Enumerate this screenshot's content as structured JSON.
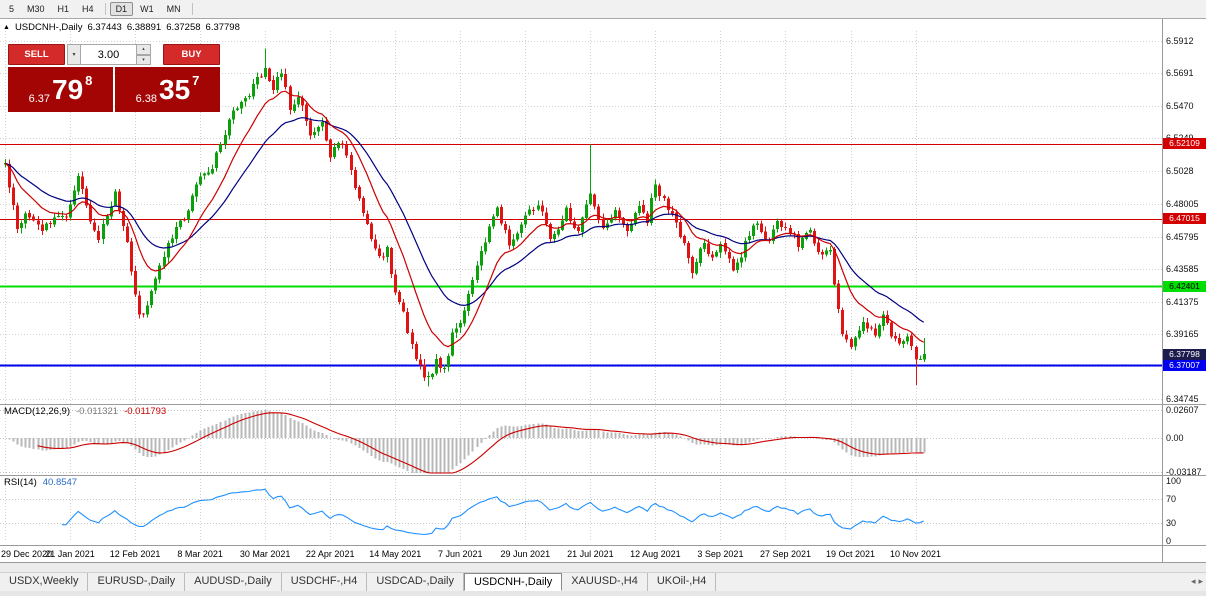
{
  "toolbar": {
    "periods": [
      {
        "label": "5",
        "active": false
      },
      {
        "label": "M30",
        "active": false
      },
      {
        "label": "H1",
        "active": false
      },
      {
        "label": "H4",
        "active": false
      },
      {
        "label": "D1",
        "active": true
      },
      {
        "label": "W1",
        "active": false
      },
      {
        "label": "MN",
        "active": false
      }
    ]
  },
  "icons": {
    "collapse": "▲",
    "dropdown": "▾",
    "spin_up": "▴",
    "spin_down": "▾",
    "tab_scroll_left": "◂",
    "tab_scroll_right": "▸"
  },
  "chart_header": {
    "symbol": "USDCNH-,Daily",
    "open": "6.37443",
    "high": "6.38891",
    "low": "6.37258",
    "close": "6.37798"
  },
  "trade_panel": {
    "sell_label": "SELL",
    "buy_label": "BUY",
    "volume": "3.00",
    "sell_small": "6.37",
    "sell_big": "79",
    "sell_sup": "8",
    "buy_small": "6.38",
    "buy_big": "35",
    "buy_sup": "7"
  },
  "price_scale": [
    {
      "text": "6.5912",
      "price": 6.5912
    },
    {
      "text": "6.5691",
      "price": 6.5691
    },
    {
      "text": "6.5470",
      "price": 6.547
    },
    {
      "text": "6.5249",
      "price": 6.5249
    },
    {
      "text": "6.5028",
      "price": 6.5028
    },
    {
      "text": "6.48005",
      "price": 6.48005
    },
    {
      "text": "6.45795",
      "price": 6.45795
    },
    {
      "text": "6.43585",
      "price": 6.43585
    },
    {
      "text": "6.41375",
      "price": 6.41375
    },
    {
      "text": "6.39165",
      "price": 6.39165
    },
    {
      "text": "",
      "price": 6.36955
    },
    {
      "text": "6.34745",
      "price": 6.34745
    }
  ],
  "levels": [
    {
      "text": "6.52109",
      "price": 6.52109,
      "color": "#d40000",
      "tag_bg": "#d40000",
      "tag_fg": "#ffffff",
      "width": 1,
      "name": "resistance-line-tag-6-52109"
    },
    {
      "text": "6.47015",
      "price": 6.47015,
      "color": "#d40000",
      "tag_bg": "#d40000",
      "tag_fg": "#ffffff",
      "width": 1,
      "name": "resistance-line-tag-6-47015"
    },
    {
      "text": "6.42401",
      "price": 6.42401,
      "color": "#00dd00",
      "tag_bg": "#00dd00",
      "tag_fg": "#000000",
      "width": 2,
      "name": "support-line-tag-6-42401"
    },
    {
      "text": "6.37007",
      "price": 6.37007,
      "color": "#0000ee",
      "tag_bg": "#0000ee",
      "tag_fg": "#ffffff",
      "width": 2,
      "name": "support-line-tag-6-37007"
    }
  ],
  "current_price_tag": {
    "text": "6.37798",
    "price": 6.37798,
    "tag_bg": "#1b1b4e",
    "tag_fg": "#ffffff",
    "name": "current-price-tag"
  },
  "macd_panel": {
    "name": "MACD(12,26,9)",
    "value_main": "-0.011321",
    "value_signal": "-0.011793",
    "scale": [
      {
        "text": "0.02607",
        "value": 0.02607
      },
      {
        "text": "0.00",
        "value": 0
      },
      {
        "text": "-0.03187",
        "value": -0.03187
      }
    ]
  },
  "rsi_panel": {
    "name": "RSI(14)",
    "value": "40.8547",
    "scale": [
      {
        "text": "100",
        "value": 100
      },
      {
        "text": "70",
        "value": 70
      },
      {
        "text": "30",
        "value": 30
      },
      {
        "text": "0",
        "value": 0
      }
    ],
    "level_lines": [
      70,
      30
    ]
  },
  "x_axis": [
    "29 Dec 2020",
    "21 Jan 2021",
    "12 Feb 2021",
    "8 Mar 2021",
    "30 Mar 2021",
    "22 Apr 2021",
    "14 May 2021",
    "7 Jun 2021",
    "29 Jun 2021",
    "21 Jul 2021",
    "12 Aug 2021",
    "3 Sep 2021",
    "27 Sep 2021",
    "19 Oct 2021",
    "10 Nov 2021"
  ],
  "tabs": {
    "items": [
      {
        "label": "USDX,Weekly",
        "active": false
      },
      {
        "label": "EURUSD-,Daily",
        "active": false
      },
      {
        "label": "AUDUSD-,Daily",
        "active": false
      },
      {
        "label": "USDCHF-,H4",
        "active": false
      },
      {
        "label": "USDCAD-,Daily",
        "active": false
      },
      {
        "label": "USDCNH-,Daily",
        "active": true
      },
      {
        "label": "XAUUSD-,H4",
        "active": false
      },
      {
        "label": "UKOil-,H4",
        "active": false
      }
    ]
  },
  "colors": {
    "up": "#0aa10a",
    "down": "#e01414",
    "grid": "#d2d2d2",
    "ma_fast": "#cc0000",
    "ma_slow": "#000080",
    "macd_hist": "#b8b8b8",
    "macd_signal": "#cc0000",
    "rsi_line": "#1e90ff",
    "panel_red": "#a30505",
    "button_red": "#d42a2a"
  },
  "chart_data": {
    "type": "candlestick",
    "symbol": "USDCNH",
    "timeframe": "Daily",
    "ylim": [
      6.344,
      6.598
    ],
    "bars": 227,
    "x_tick_every_bars": 16,
    "levels": [
      6.52109,
      6.47015,
      6.42401,
      6.37007
    ],
    "current_price": 6.37798,
    "last_ohlc": [
      6.37443,
      6.38891,
      6.37258,
      6.37798
    ],
    "macd_current": [
      -0.011321,
      -0.011793
    ],
    "rsi_current": 40.8547,
    "indicators": {
      "ma_fast": {
        "type": "EMA",
        "period": 12
      },
      "ma_slow": {
        "type": "EMA",
        "period": 26
      },
      "macd": [
        12,
        26,
        9
      ],
      "rsi": 14
    },
    "spikes": {
      "64": {
        "high": 6.586
      },
      "104": {
        "low": 6.356
      },
      "144": {
        "high": 6.5208
      },
      "224": {
        "low": 6.357
      }
    },
    "price_anchors": [
      [
        0,
        6.506
      ],
      [
        3,
        6.465
      ],
      [
        6,
        6.474
      ],
      [
        9,
        6.46
      ],
      [
        12,
        6.472
      ],
      [
        15,
        6.469
      ],
      [
        18,
        6.497
      ],
      [
        21,
        6.47
      ],
      [
        23,
        6.456
      ],
      [
        27,
        6.488
      ],
      [
        30,
        6.452
      ],
      [
        33,
        6.403
      ],
      [
        35,
        6.41
      ],
      [
        37,
        6.432
      ],
      [
        41,
        6.458
      ],
      [
        44,
        6.47
      ],
      [
        48,
        6.498
      ],
      [
        51,
        6.506
      ],
      [
        53,
        6.52
      ],
      [
        55,
        6.536
      ],
      [
        57,
        6.548
      ],
      [
        60,
        6.556
      ],
      [
        62,
        6.565
      ],
      [
        64,
        6.574
      ],
      [
        66,
        6.558
      ],
      [
        68,
        6.57
      ],
      [
        70,
        6.545
      ],
      [
        72,
        6.553
      ],
      [
        75,
        6.528
      ],
      [
        78,
        6.537
      ],
      [
        80,
        6.514
      ],
      [
        83,
        6.521
      ],
      [
        86,
        6.492
      ],
      [
        88,
        6.474
      ],
      [
        90,
        6.458
      ],
      [
        92,
        6.442
      ],
      [
        94,
        6.448
      ],
      [
        96,
        6.418
      ],
      [
        98,
        6.404
      ],
      [
        100,
        6.382
      ],
      [
        102,
        6.37
      ],
      [
        104,
        6.36
      ],
      [
        106,
        6.374
      ],
      [
        108,
        6.366
      ],
      [
        110,
        6.392
      ],
      [
        113,
        6.406
      ],
      [
        116,
        6.438
      ],
      [
        119,
        6.466
      ],
      [
        121,
        6.478
      ],
      [
        124,
        6.452
      ],
      [
        126,
        6.46
      ],
      [
        128,
        6.472
      ],
      [
        131,
        6.481
      ],
      [
        134,
        6.456
      ],
      [
        136,
        6.464
      ],
      [
        138,
        6.476
      ],
      [
        141,
        6.462
      ],
      [
        144,
        6.488
      ],
      [
        147,
        6.461
      ],
      [
        150,
        6.478
      ],
      [
        153,
        6.461
      ],
      [
        156,
        6.479
      ],
      [
        158,
        6.47
      ],
      [
        160,
        6.493
      ],
      [
        163,
        6.477
      ],
      [
        166,
        6.46
      ],
      [
        169,
        6.432
      ],
      [
        172,
        6.455
      ],
      [
        174,
        6.442
      ],
      [
        176,
        6.456
      ],
      [
        179,
        6.434
      ],
      [
        182,
        6.452
      ],
      [
        185,
        6.468
      ],
      [
        188,
        6.455
      ],
      [
        190,
        6.467
      ],
      [
        192,
        6.466
      ],
      [
        195,
        6.452
      ],
      [
        198,
        6.461
      ],
      [
        200,
        6.448
      ],
      [
        203,
        6.45
      ],
      [
        204,
        6.428
      ],
      [
        206,
        6.39
      ],
      [
        208,
        6.385
      ],
      [
        211,
        6.402
      ],
      [
        214,
        6.391
      ],
      [
        216,
        6.404
      ],
      [
        218,
        6.392
      ],
      [
        220,
        6.385
      ],
      [
        222,
        6.393
      ],
      [
        224,
        6.374
      ],
      [
        226,
        6.37798
      ]
    ]
  }
}
